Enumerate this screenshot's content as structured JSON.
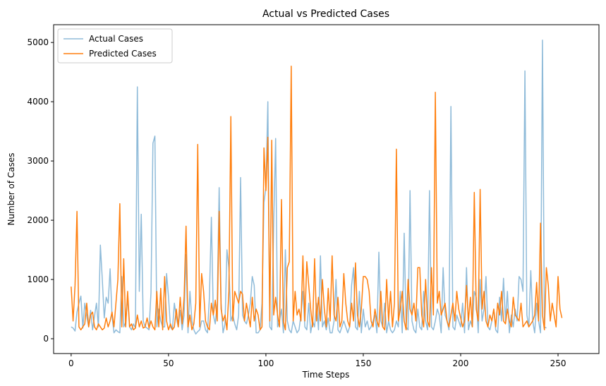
{
  "chart_data": {
    "type": "line",
    "title": "Actual vs Predicted Cases",
    "xlabel": "Time Steps",
    "ylabel": "Number of Cases",
    "xlim": [
      -9,
      271
    ],
    "ylim": [
      -250,
      5300
    ],
    "xticks": [
      0,
      50,
      100,
      150,
      200,
      250
    ],
    "yticks": [
      0,
      1000,
      2000,
      3000,
      4000,
      5000
    ],
    "grid": false,
    "legend_position": "top-left",
    "series": [
      {
        "name": "Actual Cases",
        "color": "#1f77b4",
        "alpha": 0.5,
        "values": [
          200,
          180,
          130,
          450,
          600,
          720,
          180,
          600,
          380,
          200,
          480,
          150,
          380,
          600,
          200,
          1580,
          1000,
          350,
          700,
          600,
          1180,
          380,
          100,
          150,
          120,
          100,
          1050,
          200,
          280,
          700,
          200,
          150,
          250,
          180,
          4250,
          800,
          2100,
          300,
          200,
          180,
          150,
          780,
          3300,
          3420,
          200,
          500,
          300,
          200,
          200,
          1100,
          700,
          200,
          150,
          600,
          350,
          200,
          480,
          150,
          400,
          1420,
          100,
          800,
          300,
          150,
          80,
          120,
          150,
          300,
          300,
          150,
          100,
          700,
          2050,
          400,
          250,
          600,
          2550,
          600,
          100,
          250,
          1500,
          1200,
          300,
          400,
          250,
          150,
          400,
          2720,
          400,
          300,
          250,
          400,
          600,
          1050,
          900,
          100,
          100,
          150,
          600,
          2300,
          2550,
          4000,
          200,
          150,
          1950,
          3380,
          200,
          300,
          500,
          100,
          1500,
          300,
          150,
          100,
          300,
          200,
          100,
          150,
          400,
          800,
          200,
          150,
          600,
          100,
          300,
          200,
          600,
          150,
          1400,
          200,
          300,
          150,
          350,
          100,
          100,
          300,
          1000,
          150,
          100,
          200,
          300,
          200,
          100,
          200,
          900,
          1200,
          200,
          150,
          800,
          100,
          500,
          200,
          300,
          150,
          200,
          300,
          400,
          100,
          1460,
          300,
          200,
          600,
          100,
          300,
          150,
          100,
          150,
          300,
          200,
          800,
          100,
          1780,
          200,
          150,
          2500,
          300,
          150,
          100,
          500,
          200,
          150,
          800,
          300,
          150,
          2500,
          200,
          150,
          300,
          500,
          400,
          100,
          1200,
          400,
          300,
          150,
          3920,
          200,
          150,
          400,
          300,
          200,
          600,
          100,
          1200,
          150,
          300,
          200,
          800,
          700,
          100,
          1000,
          300,
          500,
          1050,
          200,
          150,
          300,
          500,
          150,
          100,
          700,
          300,
          1020,
          300,
          800,
          100,
          400,
          200,
          500,
          300,
          1050,
          1000,
          800,
          4520,
          400,
          200,
          1150,
          300,
          100,
          600,
          300,
          100,
          5040,
          200,
          180
        ]
      },
      {
        "name": "Predicted Cases",
        "color": "#ff7f0e",
        "alpha": 1.0,
        "values": [
          880,
          300,
          900,
          2150,
          200,
          150,
          200,
          250,
          600,
          200,
          400,
          450,
          200,
          150,
          250,
          200,
          150,
          180,
          350,
          200,
          300,
          450,
          200,
          600,
          1000,
          2280,
          200,
          1350,
          200,
          800,
          200,
          250,
          150,
          180,
          400,
          200,
          300,
          180,
          200,
          350,
          180,
          300,
          200,
          150,
          800,
          200,
          850,
          150,
          1050,
          300,
          150,
          250,
          150,
          200,
          500,
          200,
          700,
          250,
          700,
          1900,
          200,
          400,
          150,
          250,
          600,
          3280,
          200,
          1100,
          800,
          300,
          200,
          150,
          600,
          400,
          650,
          300,
          2150,
          500,
          300,
          400,
          150,
          800,
          3750,
          300,
          800,
          700,
          600,
          800,
          750,
          300,
          600,
          400,
          200,
          700,
          300,
          500,
          400,
          150,
          200,
          3220,
          2500,
          3400,
          300,
          3350,
          400,
          700,
          400,
          200,
          2350,
          300,
          150,
          1200,
          1300,
          4600,
          300,
          800,
          400,
          500,
          300,
          1400,
          300,
          1300,
          900,
          500,
          200,
          1350,
          300,
          700,
          300,
          1000,
          500,
          200,
          850,
          300,
          1400,
          400,
          300,
          700,
          200,
          300,
          1100,
          600,
          300,
          200,
          600,
          300,
          1280,
          400,
          200,
          500,
          1050,
          1050,
          1000,
          800,
          300,
          200,
          500,
          300,
          200,
          800,
          200,
          150,
          1000,
          300,
          800,
          200,
          600,
          3200,
          300,
          500,
          800,
          300,
          150,
          1000,
          500,
          400,
          600,
          300,
          1200,
          1200,
          400,
          200,
          1000,
          300,
          200,
          1200,
          400,
          4160,
          600,
          800,
          400,
          500,
          600,
          300,
          200,
          400,
          600,
          300,
          800,
          500,
          350,
          200,
          300,
          900,
          300,
          700,
          200,
          2470,
          500,
          300,
          2520,
          500,
          800,
          300,
          200,
          400,
          300,
          500,
          200,
          600,
          400,
          800,
          300,
          250,
          500,
          300,
          200,
          700,
          400,
          350,
          300,
          600,
          200,
          250,
          300,
          200,
          250,
          300,
          400,
          950,
          300,
          1950,
          400,
          150,
          1200,
          900,
          300,
          600,
          400,
          200,
          1050,
          500,
          350
        ]
      }
    ]
  }
}
